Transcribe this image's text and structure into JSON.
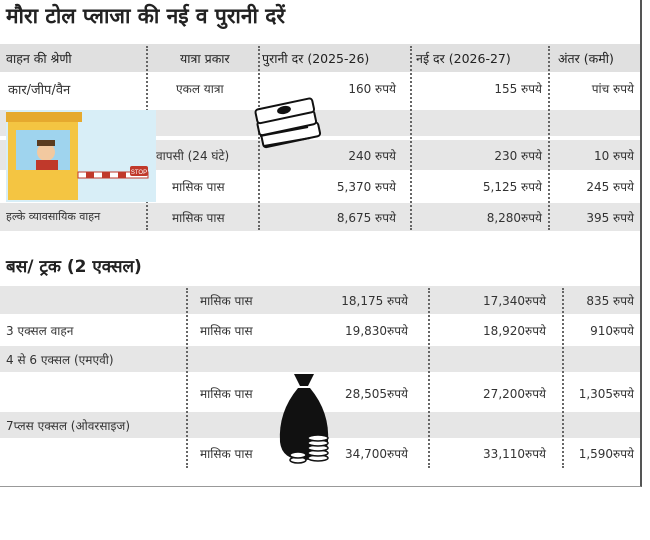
{
  "title": "मौरा टोल प्लाजा की नई व पुरानी दरें",
  "header": {
    "category": "वाहन की श्रेणी",
    "trip_type": "यात्रा प्रकार",
    "old_rate": "पुरानी दर (2025-26)",
    "new_rate": "नई दर (2026-27)",
    "difference": "अंतर (कमी)"
  },
  "car": {
    "label": "कार/जीप/वैन",
    "rows": [
      {
        "type": "एकल यात्रा",
        "old": "160 रुपये",
        "new": "155 रुपये",
        "diff": "पांच रुपये"
      },
      {
        "type": "वापसी (24 घंटे)",
        "old": "240 रुपये",
        "new": "230 रुपये",
        "diff": "10 रुपये"
      },
      {
        "type": "मासिक पास",
        "old": "5,370 रुपये",
        "new": "5,125 रुपये",
        "diff": "245 रुपये"
      }
    ]
  },
  "lcv": {
    "label": "हल्के व्यावसायिक वाहन",
    "type": "मासिक पास",
    "old": "8,675 रुपये",
    "new": "8,280रुपये",
    "diff": "395 रुपये"
  },
  "bus_section": "बस/ ट्रक (2 एक्सल)",
  "bus": {
    "type": "मासिक पास",
    "old": "18,175 रुपये",
    "new": "17,340रुपये",
    "diff": "835 रुपये"
  },
  "axle3": {
    "label": "3 एक्सल वाहन",
    "type": "मासिक पास",
    "old": "19,830रुपये",
    "new": "18,920रुपये",
    "diff": "910रुपये"
  },
  "axle4to6": {
    "label": "4 से 6 एक्सल (एमएवी)",
    "type": "मासिक पास",
    "old": "28,505रुपये",
    "new": "27,200रुपये",
    "diff": "1,305रुपये"
  },
  "oversize": {
    "label": "7प्लस एक्सल (ओवरसाइज)",
    "type": "मासिक पास",
    "old": "34,700रुपये",
    "new": "33,110रुपये",
    "diff": "1,590रुपये"
  },
  "toll_sign_text": "STOP",
  "colors": {
    "header_bg": "#e0e0e0",
    "row_shade": "#e6e6e6",
    "booth_blue": "#9fd4ee",
    "booth_yellow": "#f4c542"
  }
}
